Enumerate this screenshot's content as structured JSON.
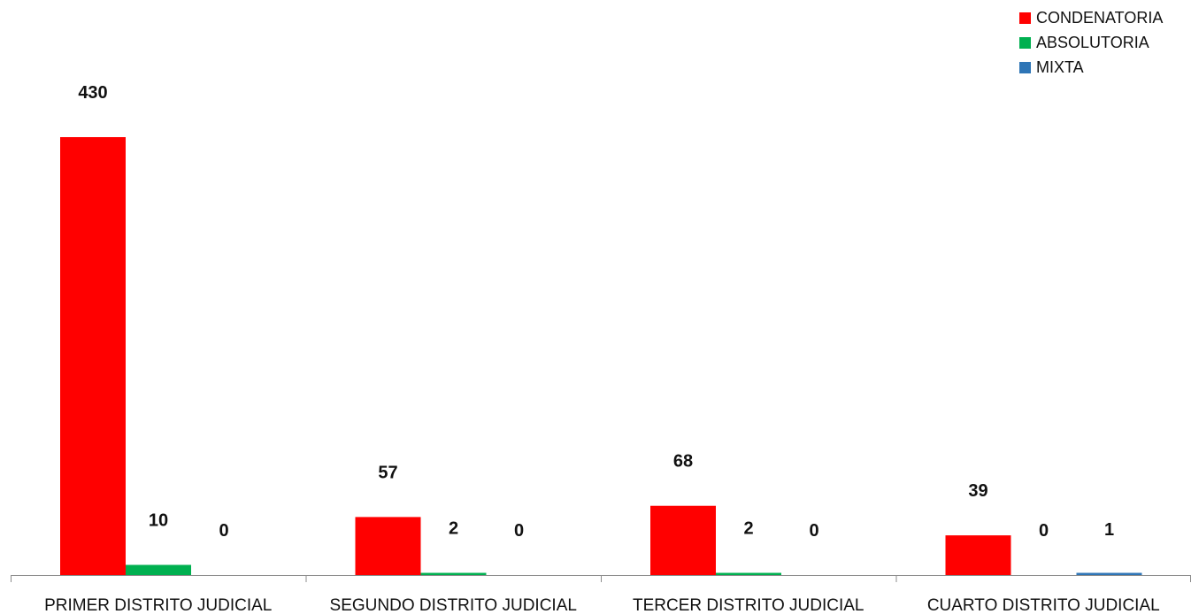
{
  "chart_data": {
    "type": "bar",
    "categories": [
      "PRIMER DISTRITO JUDICIAL",
      "SEGUNDO DISTRITO JUDICIAL",
      "TERCER DISTRITO JUDICIAL",
      "CUARTO DISTRITO JUDICIAL"
    ],
    "series": [
      {
        "name": "CONDENATORIA",
        "color": "#ff0000",
        "values": [
          430,
          57,
          68,
          39
        ]
      },
      {
        "name": "ABSOLUTORIA",
        "color": "#00b050",
        "values": [
          10,
          2,
          2,
          0
        ]
      },
      {
        "name": "MIXTA",
        "color": "#2e75b6",
        "values": [
          0,
          0,
          0,
          1
        ]
      }
    ],
    "title": "",
    "xlabel": "",
    "ylabel": "",
    "ylim": [
      0,
      430
    ],
    "grid": false,
    "legend": "top-right",
    "data_labels": true
  }
}
